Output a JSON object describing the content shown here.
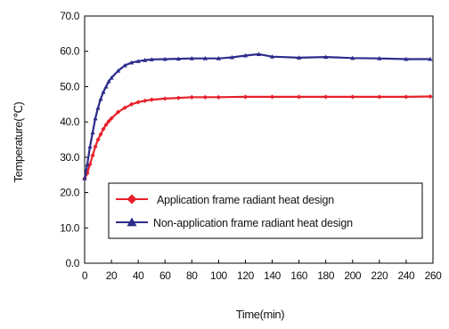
{
  "chart_data": {
    "type": "line",
    "xlabel": "Time(min)",
    "ylabel": "Temperature(℃)",
    "xlim": [
      0,
      260
    ],
    "ylim": [
      0,
      70
    ],
    "x_ticks": [
      "0",
      "20",
      "40",
      "60",
      "80",
      "100",
      "120",
      "140",
      "160",
      "180",
      "200",
      "220",
      "240",
      "260"
    ],
    "y_ticks": [
      "0.0",
      "10.0",
      "20.0",
      "30.0",
      "40.0",
      "50.0",
      "60.0",
      "70.0"
    ],
    "grid": false,
    "legend_position": "lower-center",
    "series": [
      {
        "name": "Application frame  radiant heat design",
        "color": "#e8202a",
        "marker": "diamond",
        "x": [
          0,
          2,
          4,
          6,
          8,
          10,
          12,
          14,
          16,
          18,
          20,
          25,
          30,
          35,
          40,
          45,
          50,
          60,
          70,
          80,
          90,
          100,
          120,
          140,
          160,
          180,
          200,
          220,
          240,
          258
        ],
        "y": [
          24,
          25.5,
          28,
          30.5,
          33,
          35,
          36.5,
          38,
          39.2,
          40.2,
          41,
          42.8,
          44,
          45,
          45.6,
          46,
          46.3,
          46.6,
          46.8,
          47,
          47,
          47,
          47.1,
          47.1,
          47.1,
          47.1,
          47.1,
          47.1,
          47.1,
          47.2
        ]
      },
      {
        "name": "Non-application frame  radiant heat design",
        "color": "#2c2c8c",
        "marker": "triangle",
        "x": [
          0,
          2,
          4,
          6,
          8,
          10,
          12,
          14,
          16,
          18,
          20,
          25,
          30,
          35,
          40,
          45,
          50,
          60,
          70,
          80,
          90,
          100,
          110,
          120,
          130,
          140,
          160,
          180,
          200,
          220,
          240,
          258
        ],
        "y": [
          24,
          28,
          33,
          37,
          41,
          44,
          46.5,
          48.5,
          50,
          51.5,
          52.5,
          54.5,
          56,
          56.8,
          57.2,
          57.5,
          57.7,
          57.8,
          57.9,
          58,
          58,
          58,
          58.3,
          58.8,
          59.2,
          58.5,
          58.2,
          58.4,
          58.1,
          58,
          57.8,
          57.8
        ]
      }
    ]
  }
}
